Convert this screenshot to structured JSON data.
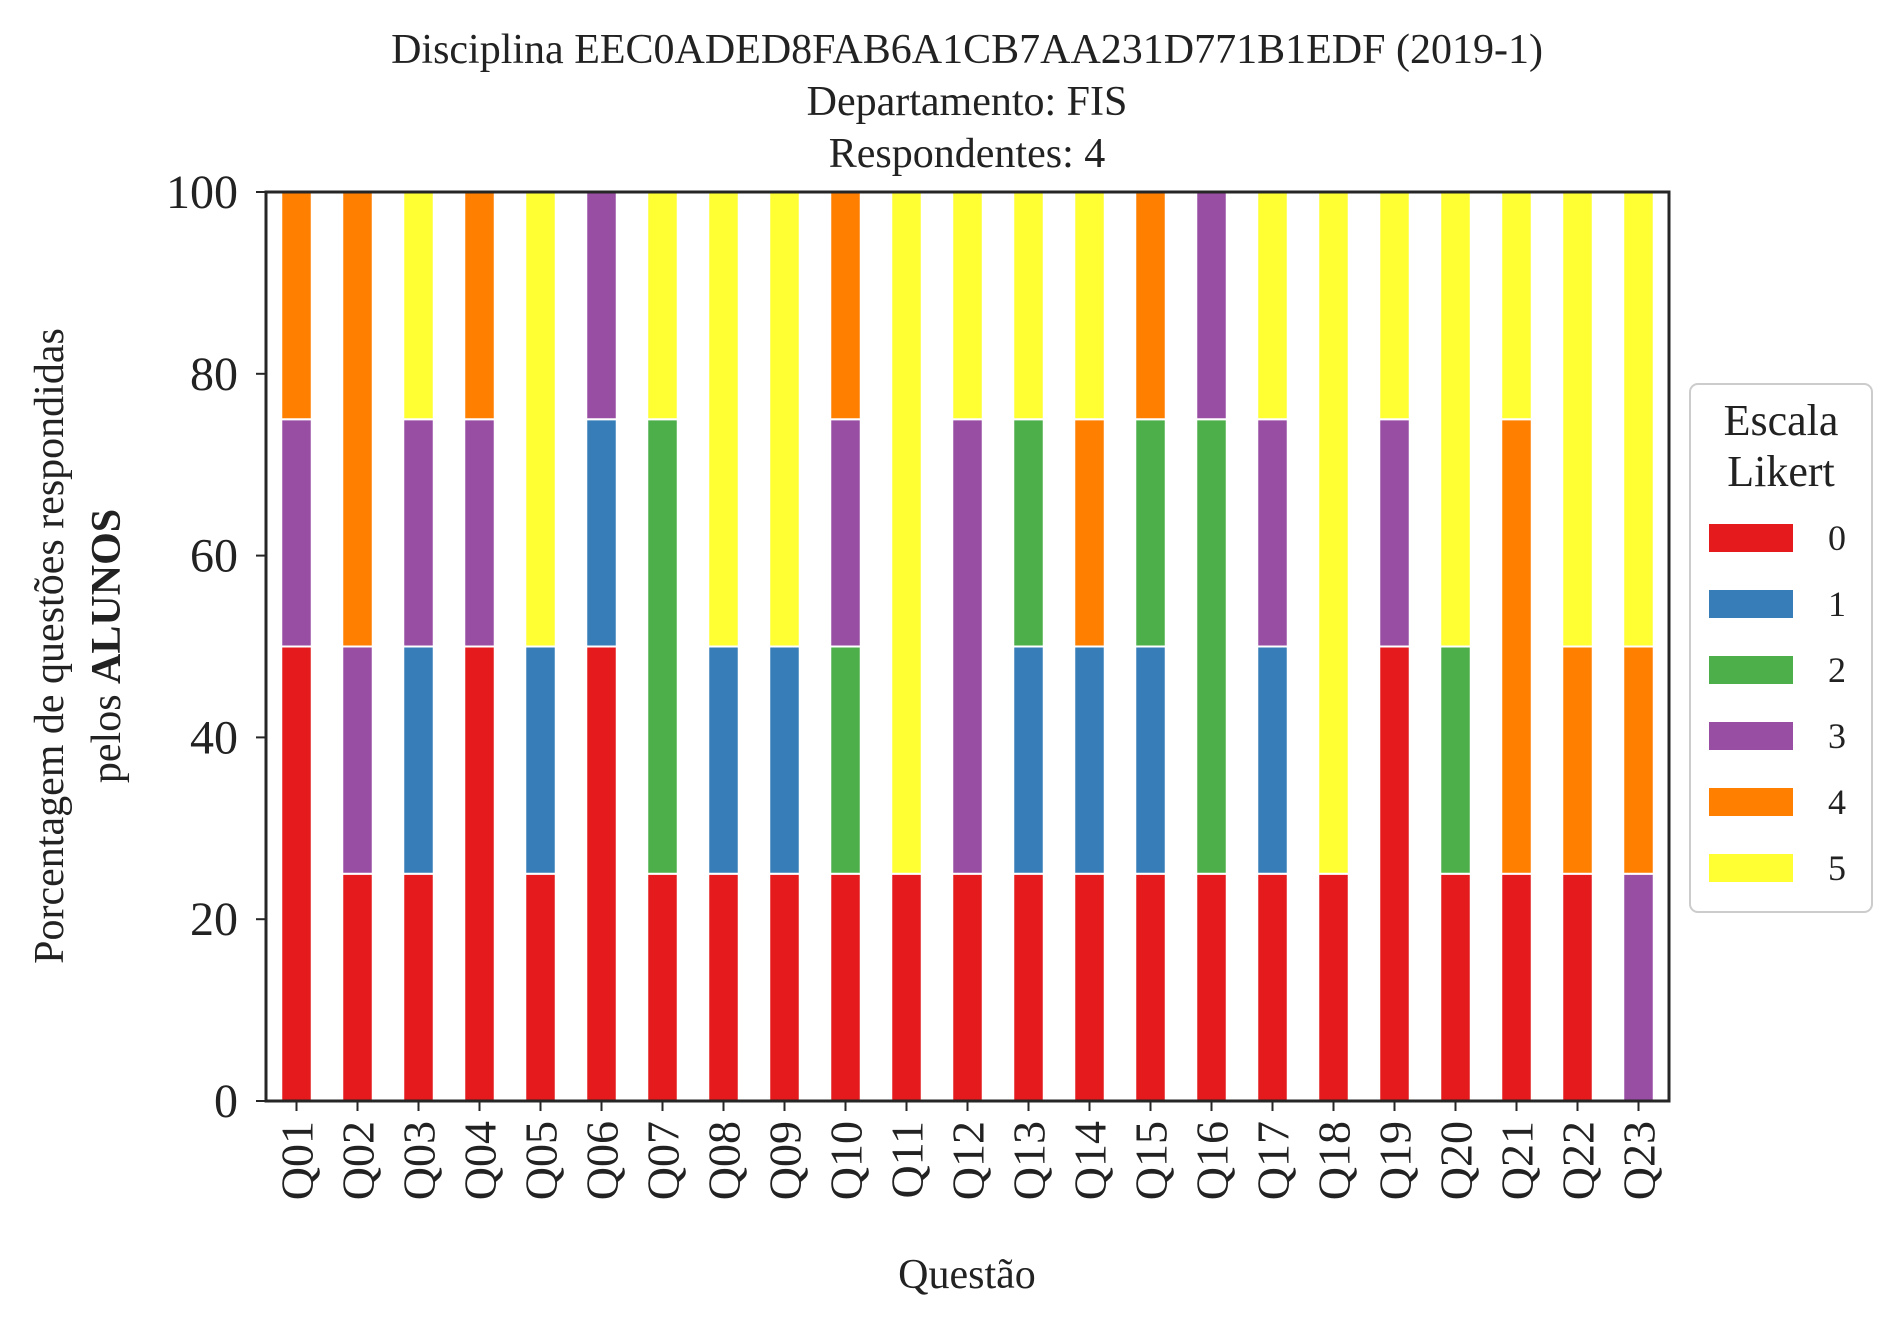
{
  "chart_data": {
    "type": "bar",
    "stacked": true,
    "title_lines": [
      "Disciplina EEC0ADED8FAB6A1CB7AA231D771B1EDF (2019-1)",
      "Departamento: FIS",
      "Respondentes: 4"
    ],
    "xlabel": "Questão",
    "ylabel": {
      "line1": "Porcentagem de questões respondidas",
      "line2_prefix": "pelos ",
      "line2_bold": "ALUNOS"
    },
    "ylim": [
      0,
      100
    ],
    "yticks": [
      0,
      20,
      40,
      60,
      80,
      100
    ],
    "grid": false,
    "legend": {
      "title_lines": [
        "Escala",
        "Likert"
      ],
      "placement": "center-right outside"
    },
    "categories": [
      "Q01",
      "Q02",
      "Q03",
      "Q04",
      "Q05",
      "Q06",
      "Q07",
      "Q08",
      "Q09",
      "Q10",
      "Q11",
      "Q12",
      "Q13",
      "Q14",
      "Q15",
      "Q16",
      "Q17",
      "Q18",
      "Q19",
      "Q20",
      "Q21",
      "Q22",
      "Q23"
    ],
    "series": [
      {
        "name": "0",
        "color": "#e41a1c",
        "values": [
          50,
          25,
          25,
          50,
          25,
          50,
          25,
          25,
          25,
          25,
          25,
          25,
          25,
          25,
          25,
          25,
          25,
          25,
          50,
          25,
          25,
          25,
          0
        ]
      },
      {
        "name": "1",
        "color": "#377eb8",
        "values": [
          0,
          0,
          25,
          0,
          25,
          25,
          0,
          25,
          25,
          0,
          0,
          0,
          25,
          25,
          25,
          0,
          25,
          0,
          0,
          0,
          0,
          0,
          0
        ]
      },
      {
        "name": "2",
        "color": "#4daf4a",
        "values": [
          0,
          0,
          0,
          0,
          0,
          0,
          50,
          0,
          0,
          25,
          0,
          0,
          25,
          0,
          25,
          50,
          0,
          0,
          0,
          25,
          0,
          0,
          0
        ]
      },
      {
        "name": "3",
        "color": "#984ea3",
        "values": [
          25,
          25,
          25,
          25,
          0,
          25,
          0,
          0,
          0,
          25,
          0,
          50,
          0,
          0,
          0,
          25,
          25,
          0,
          25,
          0,
          0,
          0,
          25
        ]
      },
      {
        "name": "4",
        "color": "#ff7f00",
        "values": [
          25,
          50,
          0,
          25,
          0,
          0,
          0,
          0,
          0,
          25,
          0,
          0,
          0,
          25,
          25,
          0,
          0,
          0,
          0,
          0,
          50,
          25,
          25
        ]
      },
      {
        "name": "5",
        "color": "#ffff33",
        "values": [
          0,
          0,
          25,
          0,
          50,
          0,
          25,
          50,
          50,
          0,
          75,
          25,
          25,
          25,
          0,
          0,
          25,
          75,
          25,
          50,
          25,
          50,
          50
        ]
      }
    ]
  }
}
